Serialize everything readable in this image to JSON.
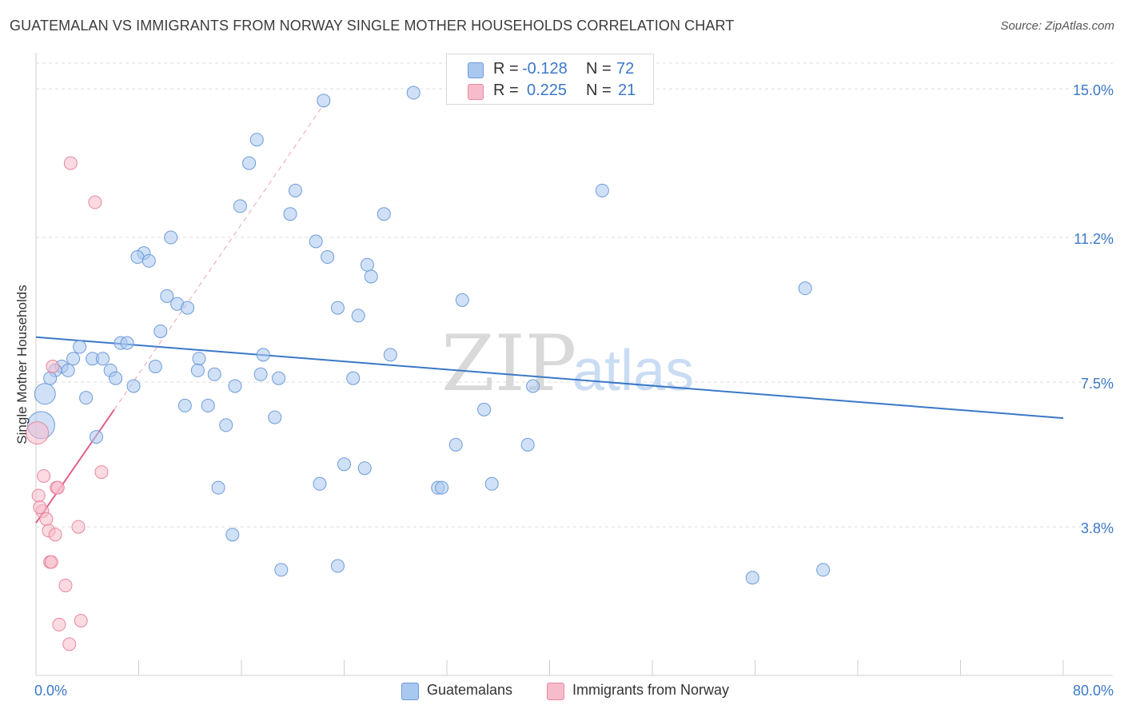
{
  "header": {
    "title": "GUATEMALAN VS IMMIGRANTS FROM NORWAY SINGLE MOTHER HOUSEHOLDS CORRELATION CHART",
    "source": "Source: ZipAtlas.com"
  },
  "watermark": {
    "zip": "ZIP",
    "atlas": "atlas"
  },
  "legend_top": {
    "rows": [
      {
        "r_label": "R = ",
        "r_value": "-0.128",
        "n_label": "N = ",
        "n_value": "72",
        "color": "#a9c8f0"
      },
      {
        "r_label": "R = ",
        "r_value": "0.225",
        "n_label": "N = ",
        "n_value": "21",
        "color": "#f7bccb"
      }
    ]
  },
  "chart_data": {
    "type": "scatter",
    "title": "GUATEMALAN VS IMMIGRANTS FROM NORWAY SINGLE MOTHER HOUSEHOLDS CORRELATION CHART",
    "xlabel": "",
    "ylabel": "Single Mother Households",
    "xlim": [
      0,
      80
    ],
    "ylim": [
      0,
      15.8
    ],
    "x_tick_labels": [
      {
        "value": 0,
        "label": "0.0%"
      },
      {
        "value": 80,
        "label": "80.0%"
      }
    ],
    "y_tick_labels": [
      {
        "value": 3.8,
        "label": "3.8%"
      },
      {
        "value": 7.5,
        "label": "7.5%"
      },
      {
        "value": 11.2,
        "label": "11.2%"
      },
      {
        "value": 15.0,
        "label": "15.0%"
      }
    ],
    "grid": "horizontal dashed",
    "legend_position": "bottom-center",
    "series": [
      {
        "name": "Guatemalans",
        "color": "#a9c8f0",
        "edge": "#6e9bd9",
        "trend": {
          "x": [
            0,
            80
          ],
          "y": [
            8.65,
            6.58
          ],
          "color": "#3a78c8"
        },
        "points": [
          [
            29.4,
            14.9
          ],
          [
            22.4,
            14.7
          ],
          [
            17.2,
            13.7
          ],
          [
            16.6,
            13.1
          ],
          [
            15.9,
            12.0
          ],
          [
            20.2,
            12.4
          ],
          [
            44.1,
            12.4
          ],
          [
            19.8,
            11.8
          ],
          [
            27.1,
            11.8
          ],
          [
            10.5,
            11.2
          ],
          [
            21.8,
            11.1
          ],
          [
            8.4,
            10.8
          ],
          [
            7.9,
            10.7
          ],
          [
            8.8,
            10.6
          ],
          [
            22.7,
            10.7
          ],
          [
            25.8,
            10.5
          ],
          [
            26.1,
            10.2
          ],
          [
            59.9,
            9.9
          ],
          [
            10.2,
            9.7
          ],
          [
            11.0,
            9.5
          ],
          [
            11.8,
            9.4
          ],
          [
            23.5,
            9.4
          ],
          [
            33.2,
            9.6
          ],
          [
            25.1,
            9.2
          ],
          [
            9.7,
            8.8
          ],
          [
            6.6,
            8.5
          ],
          [
            7.1,
            8.5
          ],
          [
            3.4,
            8.4
          ],
          [
            17.7,
            8.2
          ],
          [
            27.6,
            8.2
          ],
          [
            2.9,
            8.1
          ],
          [
            4.4,
            8.1
          ],
          [
            5.2,
            8.1
          ],
          [
            12.7,
            8.1
          ],
          [
            2.0,
            7.9
          ],
          [
            1.5,
            7.8
          ],
          [
            2.5,
            7.8
          ],
          [
            5.8,
            7.8
          ],
          [
            9.3,
            7.9
          ],
          [
            12.6,
            7.8
          ],
          [
            13.9,
            7.7
          ],
          [
            17.5,
            7.7
          ],
          [
            1.1,
            7.6
          ],
          [
            6.2,
            7.6
          ],
          [
            18.9,
            7.6
          ],
          [
            24.7,
            7.6
          ],
          [
            7.6,
            7.4
          ],
          [
            15.5,
            7.4
          ],
          [
            38.7,
            7.4
          ],
          [
            3.9,
            7.1
          ],
          [
            0.7,
            7.2
          ],
          [
            11.6,
            6.9
          ],
          [
            13.4,
            6.9
          ],
          [
            34.9,
            6.8
          ],
          [
            18.6,
            6.6
          ],
          [
            14.8,
            6.4
          ],
          [
            0.4,
            6.4
          ],
          [
            4.7,
            6.1
          ],
          [
            32.7,
            5.9
          ],
          [
            38.3,
            5.9
          ],
          [
            24.0,
            5.4
          ],
          [
            25.6,
            5.3
          ],
          [
            22.1,
            4.9
          ],
          [
            31.3,
            4.8
          ],
          [
            31.6,
            4.8
          ],
          [
            35.5,
            4.9
          ],
          [
            14.2,
            4.8
          ],
          [
            15.3,
            3.6
          ],
          [
            19.1,
            2.7
          ],
          [
            23.5,
            2.8
          ],
          [
            55.8,
            2.5
          ],
          [
            61.3,
            2.7
          ]
        ]
      },
      {
        "name": "Immigrants from Norway",
        "color": "#f7bccb",
        "edge": "#e8879f",
        "trend": {
          "x": [
            0,
            6.1
          ],
          "y": [
            3.9,
            6.8
          ],
          "color": "#e0608a"
        },
        "trend_extension": {
          "x": [
            6.1,
            22.4
          ],
          "y": [
            6.8,
            14.6
          ]
        },
        "points": [
          [
            2.7,
            13.1
          ],
          [
            4.6,
            12.1
          ],
          [
            1.3,
            7.9
          ],
          [
            0.1,
            6.2
          ],
          [
            5.1,
            5.2
          ],
          [
            0.6,
            5.1
          ],
          [
            1.6,
            4.8
          ],
          [
            1.7,
            4.8
          ],
          [
            0.2,
            4.6
          ],
          [
            0.5,
            4.2
          ],
          [
            0.8,
            4.0
          ],
          [
            3.3,
            3.8
          ],
          [
            1.0,
            3.7
          ],
          [
            1.5,
            3.6
          ],
          [
            1.1,
            2.9
          ],
          [
            1.2,
            2.9
          ],
          [
            2.3,
            2.3
          ],
          [
            1.8,
            1.3
          ],
          [
            3.5,
            1.4
          ],
          [
            2.6,
            0.8
          ],
          [
            0.3,
            4.3
          ]
        ]
      }
    ]
  }
}
